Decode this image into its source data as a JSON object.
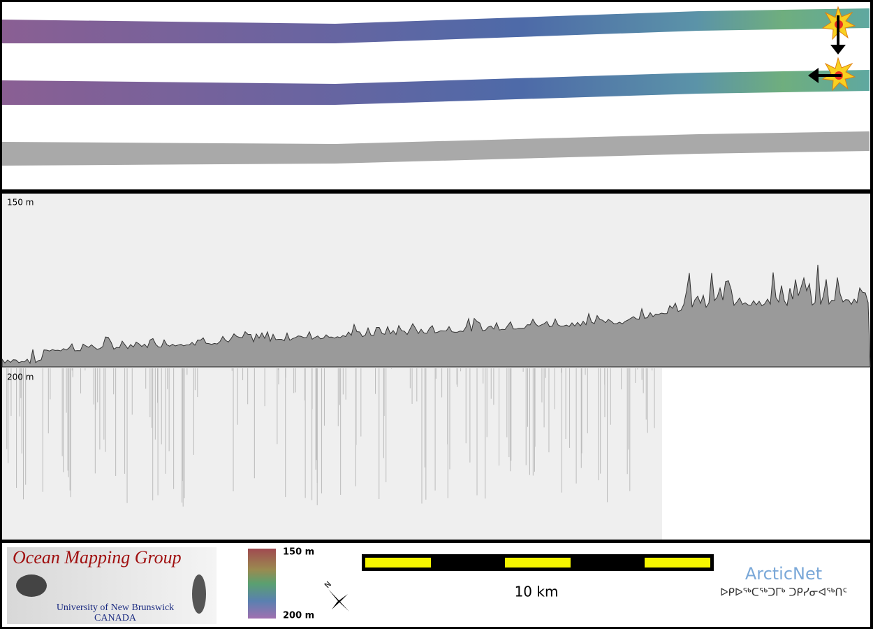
{
  "profile": {
    "depth_labels": [
      "150 m",
      "200 m"
    ]
  },
  "legend": {
    "logo": {
      "title": "Ocean Mapping Group",
      "university": "University of New Brunswick",
      "country": "CANADA"
    },
    "colorbar": {
      "top_label": "150 m",
      "bottom_label": "200 m"
    },
    "compass": "N",
    "scale_bar": "10 km",
    "partner": {
      "name": "ArcticNet",
      "syllabics": "ᐅᑭᐅᖅᑕᖅᑐᒥᒃ ᑐᑭᓯᓂᐊᖅᑎᑦ"
    }
  }
}
